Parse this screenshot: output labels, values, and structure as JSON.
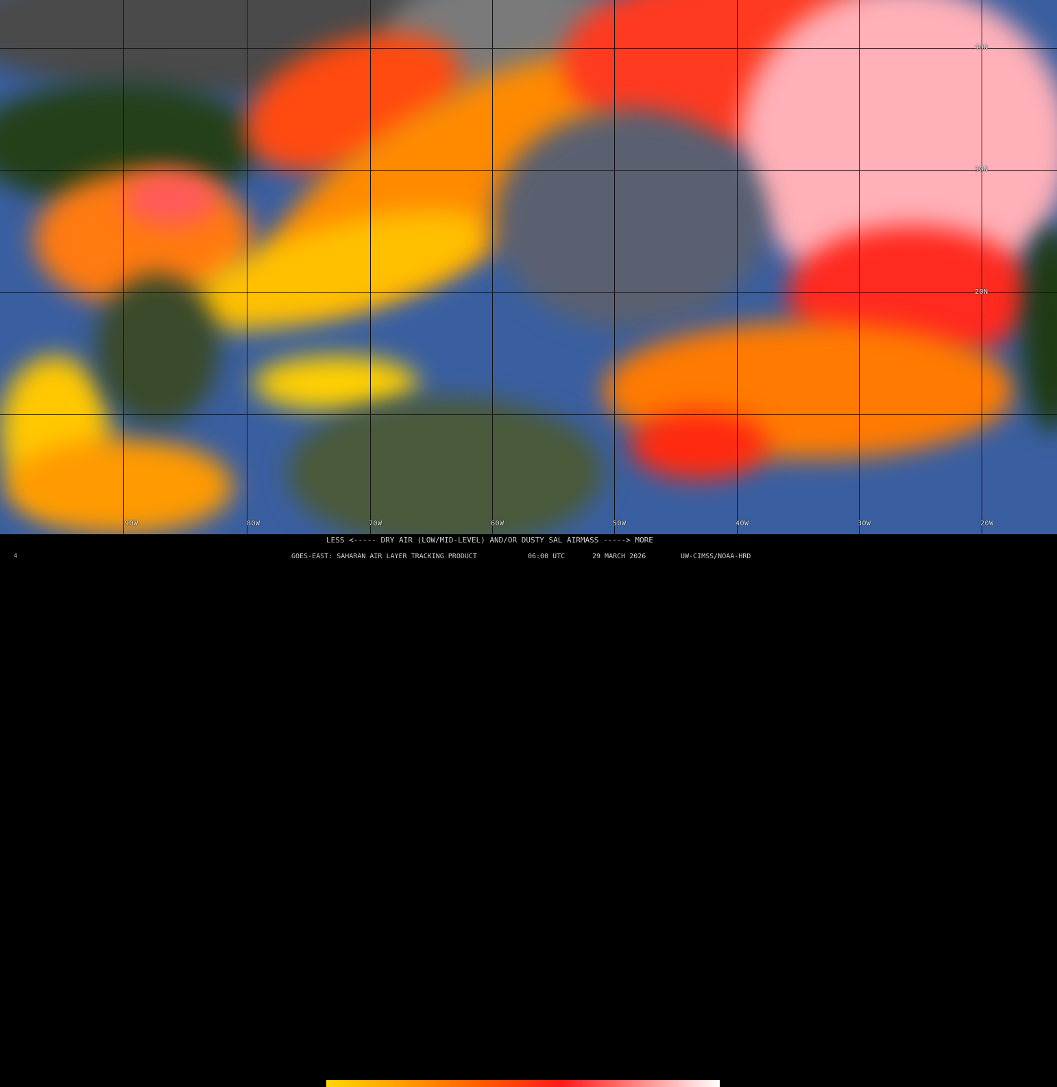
{
  "map": {
    "product": "Saharan Air Layer tracking satellite composite",
    "colors": {
      "ocean": "#3a5fa0",
      "land": "#1f3a12",
      "cloud": "#8a8a8a",
      "dry_low": "#ffd800",
      "dry_mid": "#ff5a00",
      "dry_high": "#ff1a1a",
      "dry_max": "#ffc0c8"
    },
    "lat_labels": [
      "40N",
      "30N",
      "20N"
    ],
    "lon_labels": [
      "90W",
      "80W",
      "70W",
      "60W",
      "50W",
      "40W",
      "30W",
      "20W"
    ]
  },
  "legend": {
    "scale_text": "LESS <----- DRY AIR (LOW/MID-LEVEL) AND/OR DUSTY SAL AIRMASS -----> MORE",
    "footer_product": "GOES-EAST: SAHARAN AIR LAYER TRACKING PRODUCT",
    "footer_time": "06:00 UTC",
    "footer_date": "29 MARCH 2026",
    "footer_credit": "UW-CIMSS/NOAA-HRD",
    "corner_mark": "4"
  }
}
